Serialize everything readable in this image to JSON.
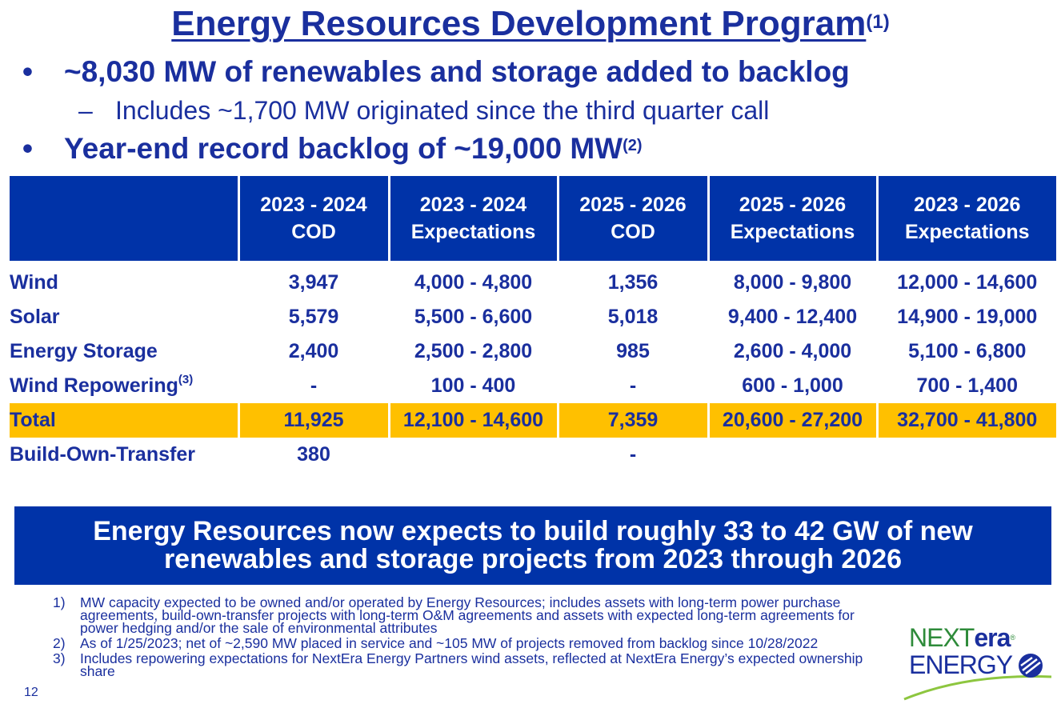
{
  "title": {
    "text": "Energy Resources Development Program",
    "footnote_ref": "(1)"
  },
  "bullets": [
    {
      "text": "~8,030 MW of renewables and storage added to backlog"
    },
    {
      "text": "Year-end record backlog of ~19,000 MW",
      "footnote_ref": "(2)"
    }
  ],
  "subbullet": {
    "text": "Includes ~1,700 MW originated since the third quarter call"
  },
  "table": {
    "headers": [
      {
        "line1": "",
        "line2": ""
      },
      {
        "line1": "2023 - 2024",
        "line2": "COD"
      },
      {
        "line1": "2023 - 2024",
        "line2": "Expectations"
      },
      {
        "line1": "2025 - 2026",
        "line2": "COD"
      },
      {
        "line1": "2025 - 2026",
        "line2": "Expectations"
      },
      {
        "line1": "2023 - 2026",
        "line2": "Expectations"
      }
    ],
    "rows": [
      {
        "label": "Wind",
        "cells": [
          "3,947",
          "4,000 - 4,800",
          "1,356",
          "8,000 - 9,800",
          "12,000 - 14,600"
        ]
      },
      {
        "label": "Solar",
        "cells": [
          "5,579",
          "5,500 - 6,600",
          "5,018",
          "9,400 - 12,400",
          "14,900 - 19,000"
        ]
      },
      {
        "label": "Energy Storage",
        "cells": [
          "2,400",
          "2,500 - 2,800",
          "985",
          "2,600 - 4,000",
          "5,100 - 6,800"
        ]
      },
      {
        "label": "Wind Repowering",
        "footnote_ref": "(3)",
        "cells": [
          "-",
          "100 - 400",
          "-",
          "600 - 1,000",
          "700 - 1,400"
        ]
      },
      {
        "label": "Total",
        "cells": [
          "11,925",
          "12,100 - 14,600",
          "7,359",
          "20,600 - 27,200",
          "32,700 - 41,800"
        ]
      },
      {
        "label": "Build-Own-Transfer",
        "cells": [
          "380",
          "",
          "-",
          "",
          ""
        ]
      }
    ]
  },
  "banner": {
    "line1": "Energy Resources now expects to build roughly 33 to 42 GW of new",
    "line2": "renewables and storage projects from 2023 through 2026"
  },
  "footnotes": [
    {
      "num": "1)",
      "text": "MW capacity expected to be owned and/or operated by Energy Resources; includes assets with long-term power purchase agreements, build-own-transfer projects with long-term O&M agreements and assets with expected long-term agreements for power hedging and/or the sale of environmental attributes"
    },
    {
      "num": "2)",
      "text": "As of 1/25/2023; net of ~2,590 MW placed in service and ~105 MW of projects removed from backlog since 10/28/2022"
    },
    {
      "num": "3)",
      "text": "Includes repowering expectations for NextEra Energy Partners wind assets, reflected at NextEra Energy’s expected ownership share"
    }
  ],
  "page_number": "12",
  "logo": {
    "part1": "NEXT",
    "part2": "era",
    "part3": "ENERGY",
    "reg": "®"
  },
  "colors": {
    "brand_blue": "#0033a8",
    "text_blue": "#1a2f9e",
    "total_highlight": "#ffc000",
    "logo_green": "#2e8b3a"
  }
}
